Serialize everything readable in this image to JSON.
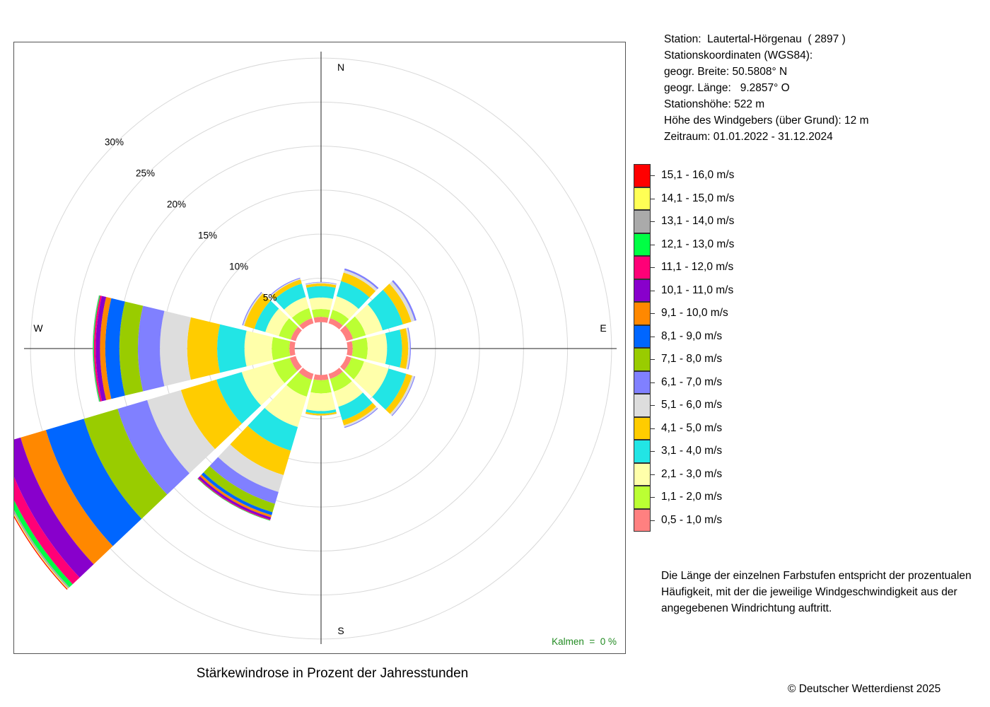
{
  "station": {
    "line1": "Station:  Lautertal-Hörgenau  ( 2897 )",
    "line2": "Stationskoordinaten (WGS84):",
    "line3": "geogr. Breite: 50.5808° N",
    "line4": "geogr. Länge:   9.2857° O",
    "line5": "Stationshöhe: 522 m",
    "line6": "Höhe des Windgebers (über Grund): 12 m",
    "line7": "Zeitraum: 01.01.2022 - 31.12.2024"
  },
  "legend": [
    {
      "label": "15,1 - 16,0 m/s",
      "color": "#ff0000"
    },
    {
      "label": "14,1 - 15,0 m/s",
      "color": "#ffff55"
    },
    {
      "label": "13,1 - 14,0 m/s",
      "color": "#aaaaaa"
    },
    {
      "label": "12,1 - 13,0 m/s",
      "color": "#00ff44"
    },
    {
      "label": "11,1 - 12,0 m/s",
      "color": "#ff0077"
    },
    {
      "label": "10,1 - 11,0 m/s",
      "color": "#8800cc"
    },
    {
      "label": "9,1 - 10,0 m/s",
      "color": "#ff8800"
    },
    {
      "label": "8,1 - 9,0 m/s",
      "color": "#0066ff"
    },
    {
      "label": "7,1 - 8,0 m/s",
      "color": "#99cc00"
    },
    {
      "label": "6,1 - 7,0 m/s",
      "color": "#8080ff"
    },
    {
      "label": "5,1 - 6,0 m/s",
      "color": "#dddddd"
    },
    {
      "label": "4,1 - 5,0 m/s",
      "color": "#ffcc00"
    },
    {
      "label": "3,1 - 4,0 m/s",
      "color": "#22e5e5"
    },
    {
      "label": "2,1 - 3,0 m/s",
      "color": "#ffffaa"
    },
    {
      "label": "1,1 - 2,0 m/s",
      "color": "#bbff33"
    },
    {
      "label": "0,5 - 1,0 m/s",
      "color": "#ff8080"
    }
  ],
  "note": "Die Länge der einzelnen Farbstufen entspricht der prozentualen Häufigkeit, mit der die jeweilige Windgeschwindigkeit aus der angegebenen Windrichtung auftritt.",
  "caption": "Stärkewindrose in Prozent der Jahresstunden",
  "copyright": "© Deutscher Wetterdienst  2025",
  "calms": "Kalmen  =  0 %",
  "chart_data": {
    "type": "wind-rose",
    "title": "Stärkewindrose in Prozent der Jahresstunden",
    "directions_deg": [
      0,
      30,
      60,
      90,
      120,
      150,
      180,
      210,
      240,
      270,
      300,
      330
    ],
    "compass_labels": {
      "N": "N",
      "E": "E",
      "S": "S",
      "W": "W"
    },
    "ring_labels": [
      "5%",
      "10%",
      "15%",
      "20%",
      "25%",
      "30%"
    ],
    "rings_percent": [
      5,
      10,
      15,
      20,
      25,
      30
    ],
    "center_hole_percent": 3.0,
    "speed_classes": [
      "0,5 - 1,0 m/s",
      "1,1 - 2,0 m/s",
      "2,1 - 3,0 m/s",
      "3,1 - 4,0 m/s",
      "4,1 - 5,0 m/s",
      "5,1 - 6,0 m/s",
      "6,1 - 7,0 m/s",
      "7,1 - 8,0 m/s",
      "8,1 - 9,0 m/s",
      "9,1 - 10,0 m/s",
      "10,1 - 11,0 m/s",
      "11,1 - 12,0 m/s",
      "12,1 - 13,0 m/s",
      "13,1 - 14,0 m/s",
      "14,1 - 15,0 m/s",
      "15,1 - 16,0 m/s"
    ],
    "series": [
      {
        "dir": 0,
        "values": [
          0.6,
          0.9,
          1.3,
          1.3,
          0.3,
          0.12,
          0.05,
          0,
          0,
          0,
          0,
          0,
          0,
          0,
          0,
          0
        ]
      },
      {
        "dir": 30,
        "values": [
          0.6,
          1.0,
          1.6,
          1.8,
          1.0,
          0.3,
          0.2,
          0,
          0,
          0,
          0,
          0,
          0,
          0,
          0,
          0
        ]
      },
      {
        "dir": 60,
        "values": [
          0.8,
          1.5,
          2.0,
          2.4,
          1.0,
          0.4,
          0.2,
          0,
          0,
          0,
          0,
          0,
          0,
          0,
          0,
          0
        ]
      },
      {
        "dir": 90,
        "values": [
          0.6,
          1.7,
          2.2,
          1.7,
          0.7,
          0.2,
          0.1,
          0,
          0,
          0,
          0,
          0,
          0,
          0,
          0,
          0
        ]
      },
      {
        "dir": 120,
        "values": [
          0.6,
          1.5,
          2.9,
          2.1,
          0.7,
          0.25,
          0.1,
          0,
          0,
          0,
          0,
          0,
          0,
          0,
          0,
          0
        ]
      },
      {
        "dir": 150,
        "values": [
          0.6,
          1.5,
          1.8,
          1.6,
          0.6,
          0.2,
          0.1,
          0,
          0,
          0,
          0,
          0,
          0,
          0,
          0,
          0
        ]
      },
      {
        "dir": 180,
        "values": [
          0.6,
          1.5,
          2.0,
          0.3,
          0.2,
          0.05,
          0,
          0,
          0,
          0,
          0,
          0,
          0,
          0,
          0,
          0
        ]
      },
      {
        "dir": 210,
        "values": [
          0.7,
          2.0,
          3.6,
          2.8,
          2.9,
          2.0,
          1.4,
          1.0,
          0.35,
          0.25,
          0.25,
          0.1,
          0.05,
          0,
          0,
          0
        ]
      },
      {
        "dir": 240,
        "values": [
          0.7,
          2.0,
          3.7,
          3.0,
          4.2,
          4.0,
          3.5,
          4.0,
          4.5,
          3.0,
          2.2,
          1.1,
          0.5,
          0.2,
          0.1,
          0.1
        ]
      },
      {
        "dir": 270,
        "values": [
          0.6,
          2.0,
          3.1,
          3.1,
          3.4,
          3.1,
          2.5,
          2.1,
          1.6,
          0.6,
          0.5,
          0.2,
          0.1,
          0.05,
          0,
          0
        ]
      },
      {
        "dir": 300,
        "values": [
          0.6,
          1.4,
          1.6,
          1.3,
          1.2,
          0.15,
          0.1,
          0,
          0,
          0,
          0,
          0,
          0,
          0,
          0,
          0
        ]
      },
      {
        "dir": 330,
        "values": [
          0.6,
          1.2,
          1.3,
          1.6,
          0.5,
          0.1,
          0.1,
          0,
          0,
          0,
          0,
          0,
          0,
          0,
          0,
          0
        ]
      }
    ],
    "calms_percent": 0
  }
}
